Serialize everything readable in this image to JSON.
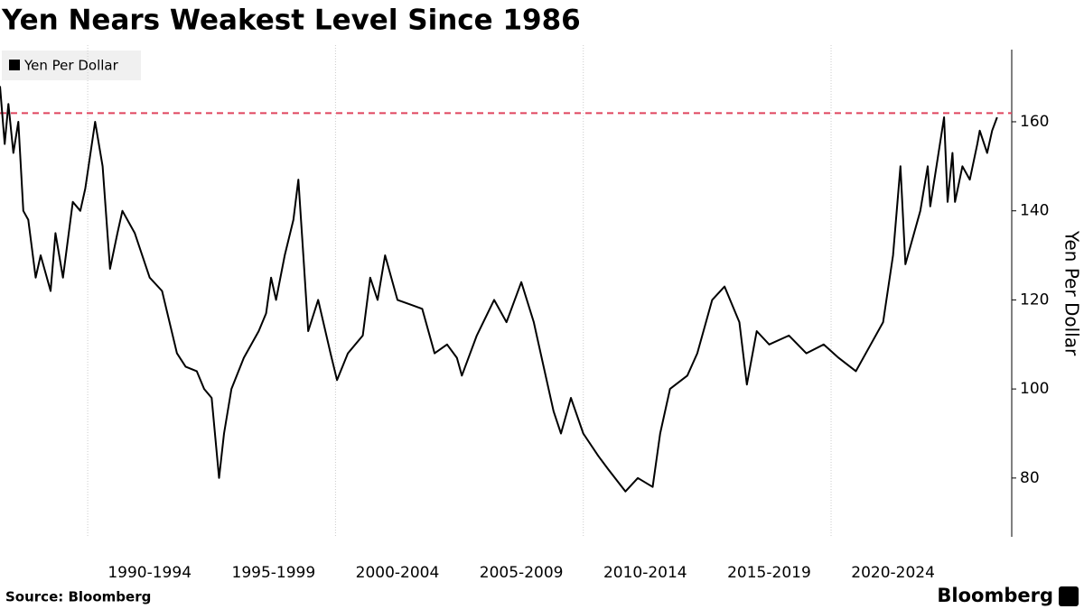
{
  "chart_data": {
    "type": "line",
    "title": "Yen Nears Weakest Level Since 1986",
    "source": "Source: Bloomberg",
    "brand": "Bloomberg",
    "ylabel": "Yen Per Dollar",
    "series": [
      {
        "name": "Yen Per Dollar",
        "color": "#000000",
        "x": [
          1986.46,
          1986.65,
          1986.8,
          1987.0,
          1987.2,
          1987.4,
          1987.6,
          1987.9,
          1988.1,
          1988.5,
          1988.7,
          1989.0,
          1989.4,
          1989.7,
          1989.9,
          1990.3,
          1990.6,
          1990.9,
          1991.2,
          1991.4,
          1991.9,
          1992.5,
          1993.0,
          1993.6,
          1993.95,
          1994.4,
          1994.7,
          1995.0,
          1995.3,
          1995.5,
          1995.8,
          1996.3,
          1996.9,
          1997.2,
          1997.4,
          1997.6,
          1997.95,
          1998.3,
          1998.5,
          1998.7,
          1998.9,
          1999.3,
          1999.8,
          2000.06,
          2000.5,
          2001.1,
          2001.4,
          2001.7,
          2002.0,
          2002.5,
          2003.0,
          2003.5,
          2004.0,
          2004.5,
          2004.9,
          2005.1,
          2005.7,
          2006.4,
          2006.9,
          2007.5,
          2008.0,
          2008.4,
          2008.8,
          2009.1,
          2009.5,
          2010.0,
          2010.6,
          2011.0,
          2011.7,
          2012.2,
          2012.8,
          2013.1,
          2013.5,
          2014.2,
          2014.6,
          2015.2,
          2015.7,
          2016.3,
          2016.6,
          2017.0,
          2017.5,
          2018.3,
          2019.0,
          2019.7,
          2020.3,
          2021.0,
          2021.6,
          2022.1,
          2022.5,
          2022.8,
          2023.0,
          2023.6,
          2023.9,
          2024.0,
          2024.56,
          2024.7,
          2024.9,
          2025.0,
          2025.3,
          2025.6,
          2025.9,
          2026.0,
          2026.3,
          2026.5,
          2026.7
        ],
        "values": [
          168,
          155,
          164,
          153,
          160,
          140,
          138,
          125,
          130,
          122,
          135,
          125,
          142,
          140,
          145,
          160,
          150,
          127,
          135,
          140,
          135,
          125,
          122,
          108,
          105,
          104,
          100,
          98,
          80,
          90,
          100,
          107,
          113,
          117,
          125,
          120,
          130,
          138,
          147,
          130,
          113,
          120,
          108,
          102,
          108,
          112,
          125,
          120,
          130,
          120,
          119,
          118,
          108,
          110,
          107,
          103,
          112,
          120,
          115,
          124,
          115,
          105,
          95,
          90,
          98,
          90,
          85,
          82,
          77,
          80,
          78,
          90,
          100,
          103,
          108,
          120,
          123,
          115,
          101,
          113,
          110,
          112,
          108,
          110,
          107,
          104,
          110,
          115,
          130,
          150,
          128,
          140,
          150,
          141,
          161,
          142,
          153,
          142,
          150,
          147,
          155,
          158,
          153,
          158,
          161
        ]
      }
    ],
    "reference_line": {
      "value": 161.95,
      "color": "#e0455e"
    },
    "xlim": [
      1986.46,
      2027.29
    ],
    "xgrid": [
      1990,
      2000,
      2010,
      2020
    ],
    "xticks": [
      {
        "value": 1990,
        "label": "1990-1994"
      },
      {
        "value": 1995,
        "label": "1995-1999"
      },
      {
        "value": 2000,
        "label": "2000-2004"
      },
      {
        "value": 2005,
        "label": "2005-2009"
      },
      {
        "value": 2010,
        "label": "2010-2014"
      },
      {
        "value": 2015,
        "label": "2015-2019"
      },
      {
        "value": 2020,
        "label": "2020-2024"
      }
    ],
    "ylim": [
      66.8,
      176.2
    ],
    "yticks": [
      80,
      100,
      120,
      140,
      160
    ]
  }
}
